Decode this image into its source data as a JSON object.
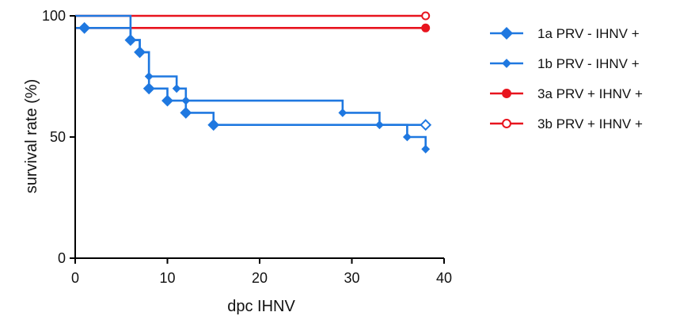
{
  "chart_data": {
    "type": "line",
    "step": true,
    "xlabel": "dpc IHNV",
    "ylabel": "survival rate (%)",
    "xlim": [
      0,
      40
    ],
    "ylim": [
      0,
      100
    ],
    "xticks": [
      0,
      10,
      20,
      30,
      40
    ],
    "yticks": [
      0,
      50,
      100
    ],
    "xtick_labels": [
      "0",
      "10",
      "20",
      "30",
      "40"
    ],
    "ytick_labels": [
      "0",
      "50",
      "100"
    ],
    "grid": false,
    "legend_position": "right",
    "series": [
      {
        "name": "1a PRV - IHNV +",
        "color": "#1f78e0",
        "marker": "diamond",
        "x": [
          0,
          1,
          6,
          7,
          8,
          10,
          12,
          15,
          38
        ],
        "y": [
          95,
          95,
          90,
          85,
          70,
          65,
          60,
          55,
          55
        ],
        "markers": [
          [
            1,
            95
          ],
          [
            6,
            90
          ],
          [
            7,
            85
          ],
          [
            8,
            70
          ],
          [
            10,
            65
          ],
          [
            12,
            60
          ],
          [
            15,
            55
          ],
          [
            38,
            55
          ]
        ],
        "end_marker_open": true
      },
      {
        "name": "1b PRV - IHNV +",
        "color": "#1f78e0",
        "marker": "small-diamond",
        "x": [
          0,
          6,
          7,
          8,
          11,
          12,
          29,
          33,
          36,
          38
        ],
        "y": [
          100,
          90,
          85,
          75,
          70,
          65,
          60,
          55,
          50,
          45
        ],
        "markers": [
          [
            8,
            75
          ],
          [
            11,
            70
          ],
          [
            12,
            65
          ],
          [
            29,
            60
          ],
          [
            33,
            55
          ],
          [
            36,
            50
          ],
          [
            38,
            45
          ]
        ]
      },
      {
        "name": "3a PRV + IHNV +",
        "color": "#e8141e",
        "marker": "circle",
        "x": [
          0,
          38
        ],
        "y": [
          95,
          95
        ],
        "markers": [
          [
            38,
            95
          ]
        ]
      },
      {
        "name": "3b PRV + IHNV +",
        "color": "#e8141e",
        "marker": "open-circle",
        "x": [
          0,
          38
        ],
        "y": [
          100,
          100
        ],
        "markers": [
          [
            38,
            100
          ]
        ]
      }
    ]
  }
}
